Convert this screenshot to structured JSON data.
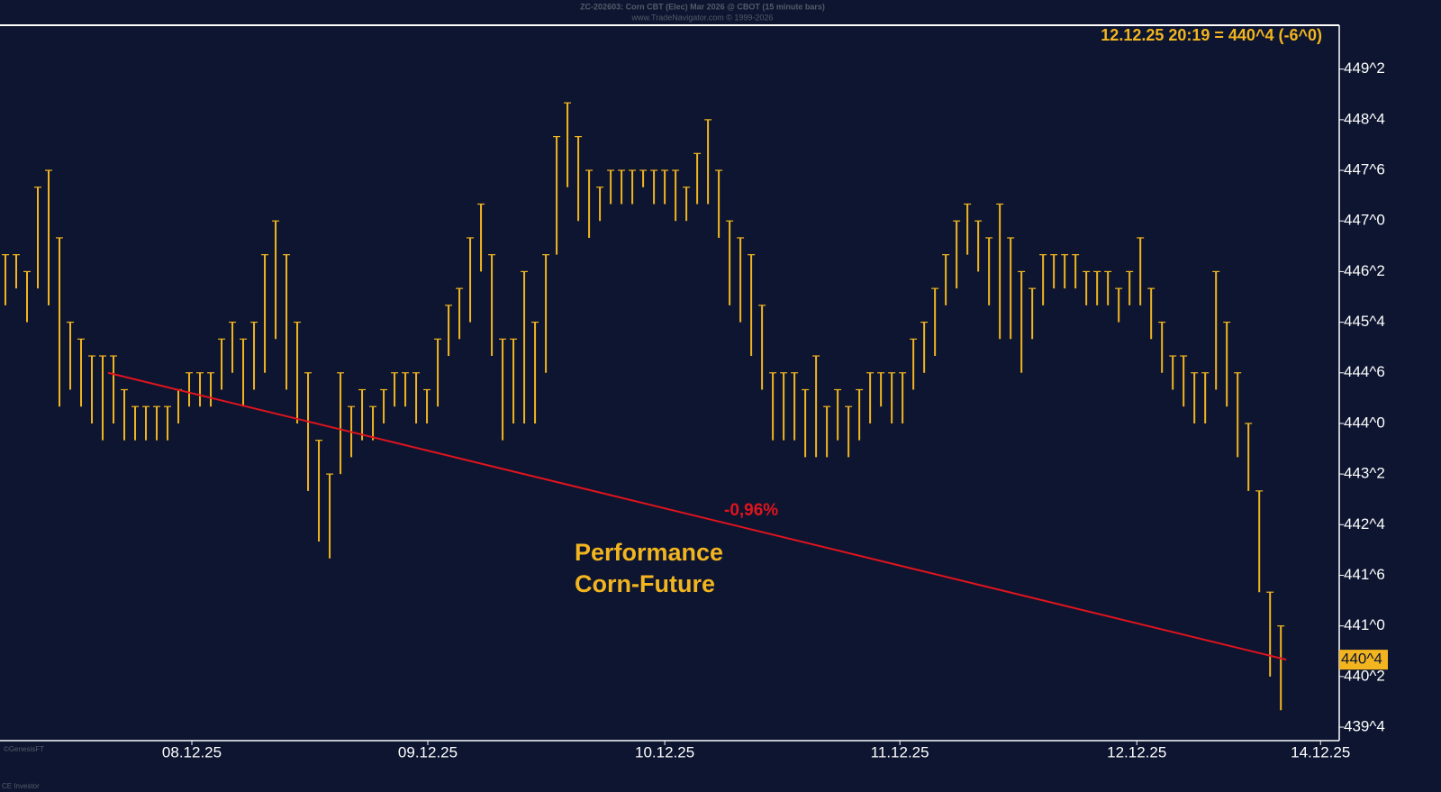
{
  "chart_data": {
    "type": "ohlc",
    "title": "ZC-202603:  Corn CBT (Elec) Mar 2026 @ CBOT  (15 minute bars)",
    "subtitle": "www.TradeNavigator.com © 1999-2026",
    "last_quote": "12.12.25 20:19 = 440^4 (-6^0)",
    "last_price": {
      "value": 440.5,
      "label": "440^4"
    },
    "annotation": [
      "Performance",
      "Corn-Future"
    ],
    "watermark": [
      "©GenesisFT",
      "CE Investor"
    ],
    "color": "#f2b51f",
    "x": [
      0,
      1,
      2,
      3,
      4,
      5,
      6,
      7,
      8,
      9,
      10,
      11,
      12,
      13,
      14,
      15,
      16,
      17,
      18,
      19,
      20,
      21,
      22,
      23,
      24,
      25,
      26,
      27,
      28,
      29,
      30,
      31,
      32,
      33,
      34,
      35,
      36,
      37,
      38,
      39,
      40,
      41,
      42,
      43,
      44,
      45,
      46,
      47,
      48,
      49,
      50,
      51,
      52,
      53,
      54,
      55,
      56,
      57,
      58,
      59,
      60,
      61,
      62,
      63,
      64,
      65,
      66,
      67,
      68,
      69,
      70,
      71,
      72,
      73,
      74,
      75,
      76,
      77,
      78,
      79,
      80,
      81,
      82,
      83,
      84,
      85,
      86,
      87,
      88,
      89,
      90,
      91,
      92,
      93,
      94,
      95,
      96,
      97,
      98,
      99,
      100,
      101,
      102,
      103,
      104,
      105,
      106,
      107,
      108,
      109,
      110,
      111,
      112,
      113,
      114,
      115,
      116,
      117,
      118
    ],
    "high": [
      446.5,
      446.5,
      446.25,
      447.5,
      447.75,
      446.75,
      445.5,
      445.25,
      445.0,
      445.0,
      445.0,
      444.5,
      444.25,
      444.25,
      444.25,
      444.25,
      444.5,
      444.75,
      444.75,
      444.75,
      445.25,
      445.5,
      445.25,
      445.5,
      446.5,
      447.0,
      446.5,
      445.5,
      444.75,
      443.75,
      443.25,
      444.75,
      444.25,
      444.5,
      444.25,
      444.5,
      444.75,
      444.75,
      444.75,
      444.5,
      445.25,
      445.75,
      446.0,
      446.75,
      447.25,
      446.5,
      445.25,
      445.25,
      446.25,
      445.5,
      446.5,
      448.25,
      448.75,
      448.25,
      447.75,
      447.5,
      447.75,
      447.75,
      447.75,
      447.75,
      447.75,
      447.75,
      447.75,
      447.5,
      448.0,
      448.5,
      447.75,
      447.0,
      446.75,
      446.5,
      445.75,
      444.75,
      444.75,
      444.75,
      444.5,
      445.0,
      444.25,
      444.5,
      444.25,
      444.5,
      444.75,
      444.75,
      444.75,
      444.75,
      445.25,
      445.5,
      446.0,
      446.5,
      447.0,
      447.25,
      447.0,
      446.75,
      447.25,
      446.75,
      446.25,
      446.0,
      446.5,
      446.5,
      446.5,
      446.5,
      446.25,
      446.25,
      446.25,
      446.0,
      446.25,
      446.75,
      446.0,
      445.5,
      445.0,
      445.0,
      444.75,
      444.75,
      446.25,
      445.5,
      444.75,
      444.0,
      443.0,
      441.5,
      441.0
    ],
    "low": [
      445.75,
      446.0,
      445.5,
      446.0,
      445.75,
      444.25,
      444.5,
      444.25,
      444.0,
      443.75,
      444.0,
      443.75,
      443.75,
      443.75,
      443.75,
      443.75,
      444.0,
      444.25,
      444.25,
      444.25,
      444.5,
      444.75,
      444.25,
      444.5,
      444.75,
      445.25,
      444.5,
      444.0,
      443.0,
      442.25,
      442.0,
      443.25,
      443.5,
      443.75,
      443.75,
      444.0,
      444.25,
      444.25,
      444.0,
      444.0,
      444.25,
      445.0,
      445.25,
      445.5,
      446.25,
      445.0,
      443.75,
      444.0,
      444.0,
      444.0,
      444.75,
      446.5,
      447.5,
      447.0,
      446.75,
      447.0,
      447.25,
      447.25,
      447.25,
      447.5,
      447.25,
      447.25,
      447.0,
      447.0,
      447.25,
      447.25,
      446.75,
      445.75,
      445.5,
      445.0,
      444.5,
      443.75,
      443.75,
      443.75,
      443.5,
      443.5,
      443.5,
      443.75,
      443.5,
      443.75,
      444.0,
      444.25,
      444.0,
      444.0,
      444.5,
      444.75,
      445.0,
      445.75,
      446.0,
      446.5,
      446.25,
      445.75,
      445.25,
      445.25,
      444.75,
      445.25,
      445.75,
      446.0,
      446.0,
      446.0,
      445.75,
      445.75,
      445.75,
      445.5,
      445.75,
      445.75,
      445.25,
      444.75,
      444.5,
      444.25,
      444.0,
      444.0,
      444.5,
      444.25,
      443.5,
      443.0,
      441.5,
      440.25,
      439.75
    ],
    "trendline": {
      "x": [
        9.5,
        118.5
      ],
      "y": [
        444.75,
        440.5
      ],
      "label": "-0,96%",
      "color": "#e0141e"
    },
    "xlim": [
      -0.5,
      123.4
    ],
    "xticks": [
      {
        "value": 17.25,
        "label": "08.12.25"
      },
      {
        "value": 39.08,
        "label": "09.12.25"
      },
      {
        "value": 61.0,
        "label": "10.12.25"
      },
      {
        "value": 82.75,
        "label": "11.12.25"
      },
      {
        "value": 104.67,
        "label": "12.12.25"
      },
      {
        "value": 121.67,
        "label": "14.12.25"
      }
    ],
    "ylim": [
      439.3,
      449.9
    ],
    "yticks": [
      {
        "value": 449.25,
        "label": "449^2"
      },
      {
        "value": 448.5,
        "label": "448^4"
      },
      {
        "value": 447.75,
        "label": "447^6"
      },
      {
        "value": 447.0,
        "label": "447^0"
      },
      {
        "value": 446.25,
        "label": "446^2"
      },
      {
        "value": 445.5,
        "label": "445^4"
      },
      {
        "value": 444.75,
        "label": "444^6"
      },
      {
        "value": 444.0,
        "label": "444^0"
      },
      {
        "value": 443.25,
        "label": "443^2"
      },
      {
        "value": 442.5,
        "label": "442^4"
      },
      {
        "value": 441.75,
        "label": "441^6"
      },
      {
        "value": 441.0,
        "label": "441^0"
      },
      {
        "value": 440.25,
        "label": "440^2"
      },
      {
        "value": 439.5,
        "label": "439^4"
      }
    ]
  }
}
